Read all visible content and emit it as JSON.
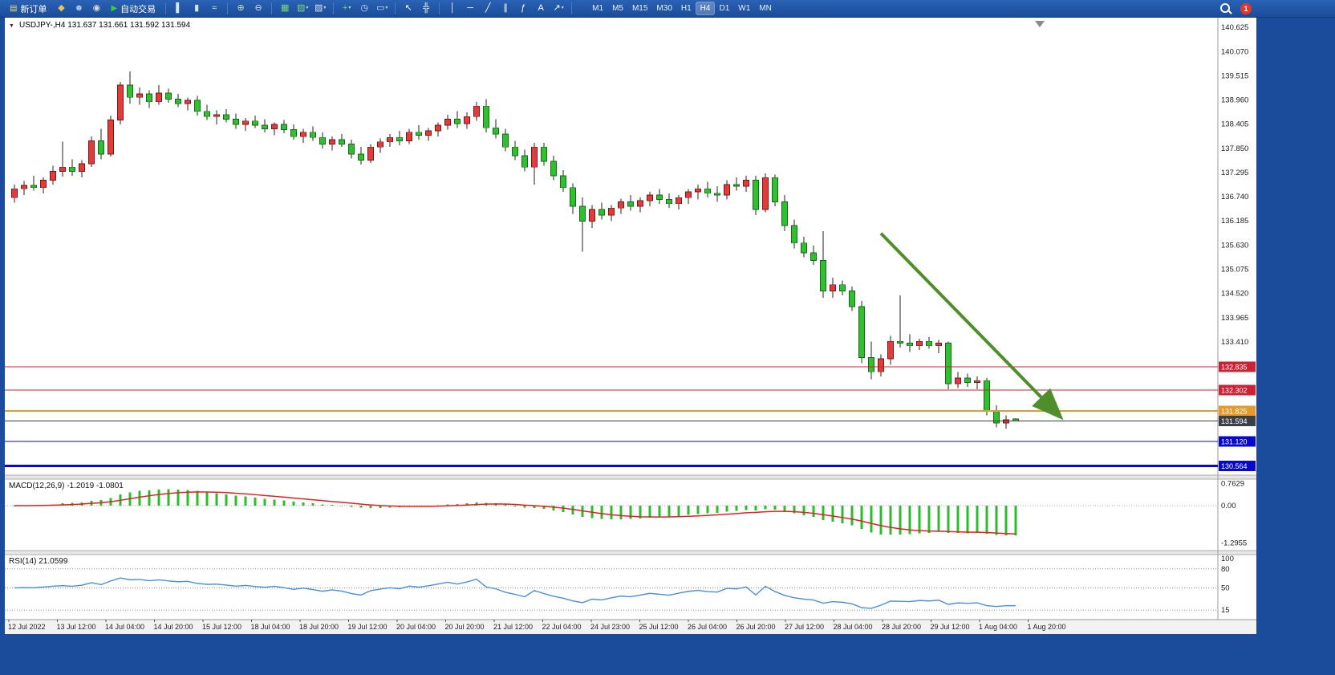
{
  "toolbar": {
    "badge_count": "1",
    "timeframes": [
      "M1",
      "M5",
      "M15",
      "M30",
      "H1",
      "H4",
      "D1",
      "W1",
      "MN"
    ],
    "active_timeframe": "H4",
    "items": [
      {
        "kind": "button",
        "name": "new-order-button",
        "glyph": "▤",
        "glyph_color": "#f7d774",
        "label": "新订单"
      },
      {
        "kind": "icon",
        "name": "megaphone-icon",
        "glyph": "◆",
        "color": "#f2c14e"
      },
      {
        "kind": "icon",
        "name": "metaeditor-icon",
        "glyph": "☻",
        "color": "#a9c8ef"
      },
      {
        "kind": "icon",
        "name": "record-icon",
        "glyph": "◉",
        "color": "#d9d9d9"
      },
      {
        "kind": "button",
        "name": "autotrade-button",
        "glyph": "▶",
        "glyph_color": "#35d435",
        "label": "自动交易"
      },
      {
        "kind": "sep"
      },
      {
        "kind": "icon",
        "name": "bar-chart-icon",
        "glyph": "▌",
        "color": "#d6e4f7"
      },
      {
        "kind": "icon",
        "name": "candlestick-chart-icon",
        "glyph": "▮",
        "color": "#d6e4f7"
      },
      {
        "kind": "icon",
        "name": "line-chart-icon",
        "glyph": "≈",
        "color": "#d6e4f7"
      },
      {
        "kind": "sep"
      },
      {
        "kind": "icon",
        "name": "zoom-in-icon",
        "glyph": "⊕",
        "color": "#bfe3bf"
      },
      {
        "kind": "icon",
        "name": "zoom-out-icon",
        "glyph": "⊖",
        "color": "#d6e4f7"
      },
      {
        "kind": "sep"
      },
      {
        "kind": "icon",
        "name": "tile-windows-icon",
        "glyph": "▦",
        "color": "#7cd47c"
      },
      {
        "kind": "icon",
        "name": "new-chart-icon",
        "glyph": "▧",
        "color": "#7cd47c",
        "caret": true
      },
      {
        "kind": "icon",
        "name": "profiles-icon",
        "glyph": "▨",
        "color": "#d6e4f7",
        "caret": true
      },
      {
        "kind": "sep"
      },
      {
        "kind": "icon",
        "name": "indicators-icon",
        "glyph": "+",
        "color": "#7cd47c",
        "caret": true
      },
      {
        "kind": "icon",
        "name": "clock-icon",
        "glyph": "◷",
        "color": "#d6e4f7"
      },
      {
        "kind": "icon",
        "name": "screenshot-icon",
        "glyph": "▭",
        "color": "#d6e4f7",
        "caret": true
      },
      {
        "kind": "sep"
      },
      {
        "kind": "icon",
        "name": "cursor-icon",
        "glyph": "↖",
        "color": "#ffffff"
      },
      {
        "kind": "icon",
        "name": "crosshair-icon",
        "glyph": "╬",
        "color": "#ffffff"
      },
      {
        "kind": "sep"
      },
      {
        "kind": "icon",
        "name": "vertical-line-icon",
        "glyph": "│",
        "color": "#ffffff"
      },
      {
        "kind": "icon",
        "name": "horizontal-line-icon",
        "glyph": "─",
        "color": "#ffffff"
      },
      {
        "kind": "icon",
        "name": "trendline-icon",
        "glyph": "╱",
        "color": "#ffffff"
      },
      {
        "kind": "icon",
        "name": "channel-icon",
        "glyph": "∥",
        "color": "#ffffff"
      },
      {
        "kind": "icon",
        "name": "fibonacci-icon",
        "glyph": "ƒ",
        "color": "#ffffff"
      },
      {
        "kind": "icon",
        "name": "text-icon",
        "glyph": "A",
        "color": "#ffffff"
      },
      {
        "kind": "icon",
        "name": "arrow-tool-icon",
        "glyph": "↗",
        "color": "#ffffff",
        "caret": true
      },
      {
        "kind": "sep"
      }
    ]
  },
  "chart": {
    "symbol_info": "USDJPY-,H4 131.637 131.661 131.592 131.594",
    "price_axis_labels": [
      "140.625",
      "140.070",
      "139.515",
      "138.960",
      "138.405",
      "137.850",
      "137.295",
      "136.740",
      "136.185",
      "135.630",
      "135.075",
      "134.520",
      "133.965",
      "133.410"
    ],
    "time_axis_labels": [
      "12 Jul 2022",
      "13 Jul 12:00",
      "14 Jul 04:00",
      "14 Jul 20:00",
      "15 Jul 12:00",
      "18 Jul 04:00",
      "18 Jul 20:00",
      "19 Jul 12:00",
      "20 Jul 04:00",
      "20 Jul 20:00",
      "21 Jul 12:00",
      "22 Jul 04:00",
      "24 Jul 23:00",
      "25 Jul 12:00",
      "26 Jul 04:00",
      "26 Jul 20:00",
      "27 Jul 12:00",
      "28 Jul 04:00",
      "28 Jul 20:00",
      "29 Jul 12:00",
      "1 Aug 04:00",
      "1 Aug 20:00"
    ],
    "macd_label": "MACD(12,26,9) -1.2019 -1.0801",
    "macd_axis_labels": [
      "0.7629",
      "0.00",
      "-1.2955"
    ],
    "rsi_label": "RSI(14) 21.0599",
    "rsi_axis_labels": [
      "100",
      "80",
      "50",
      "15"
    ]
  },
  "chart_data": {
    "type": "candlestick",
    "symbol": "USDJPY-",
    "timeframe": "H4",
    "price_range": [
      130.35,
      140.85
    ],
    "up_color": "#e13b3b",
    "down_color": "#2fbf2f",
    "ohlc": [
      [
        136.72,
        137.02,
        136.6,
        136.92
      ],
      [
        136.92,
        137.1,
        136.78,
        137.0
      ],
      [
        137.0,
        137.22,
        136.88,
        136.95
      ],
      [
        136.95,
        137.18,
        136.82,
        137.12
      ],
      [
        137.12,
        137.45,
        137.02,
        137.32
      ],
      [
        137.32,
        138.0,
        137.2,
        137.42
      ],
      [
        137.42,
        137.6,
        137.22,
        137.32
      ],
      [
        137.32,
        137.58,
        137.18,
        137.5
      ],
      [
        137.5,
        138.12,
        137.42,
        138.02
      ],
      [
        138.02,
        138.3,
        137.6,
        137.72
      ],
      [
        137.72,
        138.6,
        137.66,
        138.5
      ],
      [
        138.5,
        139.38,
        138.4,
        139.3
      ],
      [
        139.3,
        139.62,
        138.88,
        139.02
      ],
      [
        139.02,
        139.25,
        138.85,
        139.1
      ],
      [
        139.1,
        139.18,
        138.78,
        138.92
      ],
      [
        138.92,
        139.3,
        138.85,
        139.12
      ],
      [
        139.12,
        139.22,
        138.9,
        138.98
      ],
      [
        138.98,
        139.1,
        138.8,
        138.88
      ],
      [
        138.88,
        139.02,
        138.72,
        138.95
      ],
      [
        138.95,
        139.05,
        138.6,
        138.7
      ],
      [
        138.7,
        138.85,
        138.5,
        138.58
      ],
      [
        138.58,
        138.72,
        138.4,
        138.62
      ],
      [
        138.62,
        138.75,
        138.45,
        138.52
      ],
      [
        138.52,
        138.65,
        138.3,
        138.4
      ],
      [
        138.4,
        138.55,
        138.25,
        138.48
      ],
      [
        138.48,
        138.6,
        138.32,
        138.38
      ],
      [
        138.38,
        138.52,
        138.22,
        138.3
      ],
      [
        138.3,
        138.45,
        138.15,
        138.4
      ],
      [
        138.4,
        138.5,
        138.2,
        138.28
      ],
      [
        138.28,
        138.4,
        138.05,
        138.12
      ],
      [
        138.12,
        138.3,
        137.98,
        138.22
      ],
      [
        138.22,
        138.35,
        138.02,
        138.1
      ],
      [
        138.1,
        138.22,
        137.85,
        137.95
      ],
      [
        137.95,
        138.12,
        137.8,
        138.05
      ],
      [
        138.05,
        138.18,
        137.88,
        137.95
      ],
      [
        137.95,
        138.05,
        137.62,
        137.72
      ],
      [
        137.72,
        137.88,
        137.48,
        137.58
      ],
      [
        137.58,
        137.95,
        137.52,
        137.88
      ],
      [
        137.88,
        138.08,
        137.75,
        138.0
      ],
      [
        138.0,
        138.18,
        137.88,
        138.1
      ],
      [
        138.1,
        138.25,
        137.92,
        138.02
      ],
      [
        138.02,
        138.3,
        137.95,
        138.22
      ],
      [
        138.22,
        138.38,
        138.05,
        138.15
      ],
      [
        138.15,
        138.32,
        138.02,
        138.25
      ],
      [
        138.25,
        138.45,
        138.12,
        138.38
      ],
      [
        138.38,
        138.62,
        138.28,
        138.52
      ],
      [
        138.52,
        138.7,
        138.32,
        138.42
      ],
      [
        138.42,
        138.68,
        138.3,
        138.58
      ],
      [
        138.58,
        138.92,
        138.48,
        138.82
      ],
      [
        138.82,
        138.98,
        138.22,
        138.32
      ],
      [
        138.32,
        138.52,
        138.08,
        138.18
      ],
      [
        138.18,
        138.3,
        137.78,
        137.88
      ],
      [
        137.88,
        138.02,
        137.58,
        137.68
      ],
      [
        137.68,
        137.82,
        137.32,
        137.42
      ],
      [
        137.42,
        137.98,
        137.02,
        137.88
      ],
      [
        137.88,
        137.98,
        137.45,
        137.55
      ],
      [
        137.55,
        137.68,
        137.12,
        137.22
      ],
      [
        137.22,
        137.35,
        136.85,
        136.95
      ],
      [
        136.95,
        137.05,
        136.35,
        136.52
      ],
      [
        136.52,
        136.72,
        135.48,
        136.18
      ],
      [
        136.18,
        136.55,
        136.02,
        136.45
      ],
      [
        136.45,
        136.6,
        136.22,
        136.32
      ],
      [
        136.32,
        136.55,
        136.18,
        136.48
      ],
      [
        136.48,
        136.7,
        136.35,
        136.62
      ],
      [
        136.62,
        136.78,
        136.42,
        136.52
      ],
      [
        136.52,
        136.72,
        136.38,
        136.65
      ],
      [
        136.65,
        136.85,
        136.52,
        136.78
      ],
      [
        136.78,
        136.92,
        136.58,
        136.68
      ],
      [
        136.68,
        136.82,
        136.48,
        136.58
      ],
      [
        136.58,
        136.78,
        136.45,
        136.72
      ],
      [
        136.72,
        136.92,
        136.58,
        136.85
      ],
      [
        136.85,
        137.02,
        136.68,
        136.92
      ],
      [
        136.92,
        137.08,
        136.72,
        136.82
      ],
      [
        136.82,
        136.98,
        136.62,
        136.78
      ],
      [
        136.78,
        137.12,
        136.68,
        137.02
      ],
      [
        137.02,
        137.18,
        136.88,
        136.98
      ],
      [
        136.98,
        137.22,
        136.85,
        137.12
      ],
      [
        137.12,
        137.22,
        136.32,
        136.45
      ],
      [
        136.45,
        137.28,
        136.38,
        137.18
      ],
      [
        137.18,
        137.25,
        136.52,
        136.62
      ],
      [
        136.62,
        136.78,
        135.95,
        136.08
      ],
      [
        136.08,
        136.22,
        135.55,
        135.68
      ],
      [
        135.68,
        135.82,
        135.35,
        135.45
      ],
      [
        135.45,
        135.62,
        135.18,
        135.28
      ],
      [
        135.28,
        135.95,
        134.42,
        134.58
      ],
      [
        134.58,
        134.88,
        134.42,
        134.72
      ],
      [
        134.72,
        134.82,
        134.48,
        134.58
      ],
      [
        134.58,
        134.68,
        134.12,
        134.22
      ],
      [
        134.22,
        134.35,
        132.92,
        133.05
      ],
      [
        133.05,
        133.42,
        132.55,
        132.72
      ],
      [
        132.72,
        133.12,
        132.62,
        133.02
      ],
      [
        133.02,
        133.55,
        132.88,
        133.42
      ],
      [
        133.42,
        134.48,
        133.28,
        133.38
      ],
      [
        133.38,
        133.58,
        133.18,
        133.32
      ],
      [
        133.32,
        133.48,
        133.22,
        133.42
      ],
      [
        133.42,
        133.52,
        133.25,
        133.32
      ],
      [
        133.32,
        133.45,
        133.15,
        133.38
      ],
      [
        133.38,
        133.42,
        132.32,
        132.45
      ],
      [
        132.45,
        132.72,
        132.35,
        132.58
      ],
      [
        132.58,
        132.68,
        132.38,
        132.48
      ],
      [
        132.48,
        132.62,
        132.32,
        132.52
      ],
      [
        132.52,
        132.58,
        131.72,
        131.82
      ],
      [
        131.82,
        131.95,
        131.45,
        131.55
      ],
      [
        131.55,
        131.72,
        131.42,
        131.62
      ],
      [
        131.637,
        131.661,
        131.592,
        131.594
      ]
    ],
    "levels": [
      {
        "price": 132.835,
        "label": "132.835",
        "color": "#cc2233",
        "width": 1,
        "role": "resistance"
      },
      {
        "price": 132.302,
        "label": "132.302",
        "color": "#cc2233",
        "width": 1,
        "role": "resistance"
      },
      {
        "price": 131.825,
        "label": "131.825",
        "color": "#e49a2d",
        "width": 2,
        "role": "support"
      },
      {
        "price": 131.594,
        "label": "131.594",
        "color": "#3b4046",
        "width": 1,
        "role": "bid"
      },
      {
        "price": 131.12,
        "label": "131.120",
        "color": "#0808cc",
        "width": 1,
        "role": "support"
      },
      {
        "price": 130.564,
        "label": "130.564",
        "color": "#0808cc",
        "width": 3,
        "role": "support"
      }
    ],
    "arrow": {
      "from_index": 90,
      "from_price": 135.9,
      "to_index": 108.5,
      "to_price": 131.72,
      "color": "#4e8f2c"
    },
    "macd": {
      "params": [
        12,
        26,
        9
      ],
      "last": -1.2019,
      "signal_last": -1.0801,
      "axis_max": 0.7629,
      "axis_min": -1.2955
    },
    "rsi": {
      "period": 14,
      "last": 21.0599,
      "levels": [
        80,
        50,
        15
      ],
      "axis_max": 100,
      "axis_min": 0
    }
  }
}
